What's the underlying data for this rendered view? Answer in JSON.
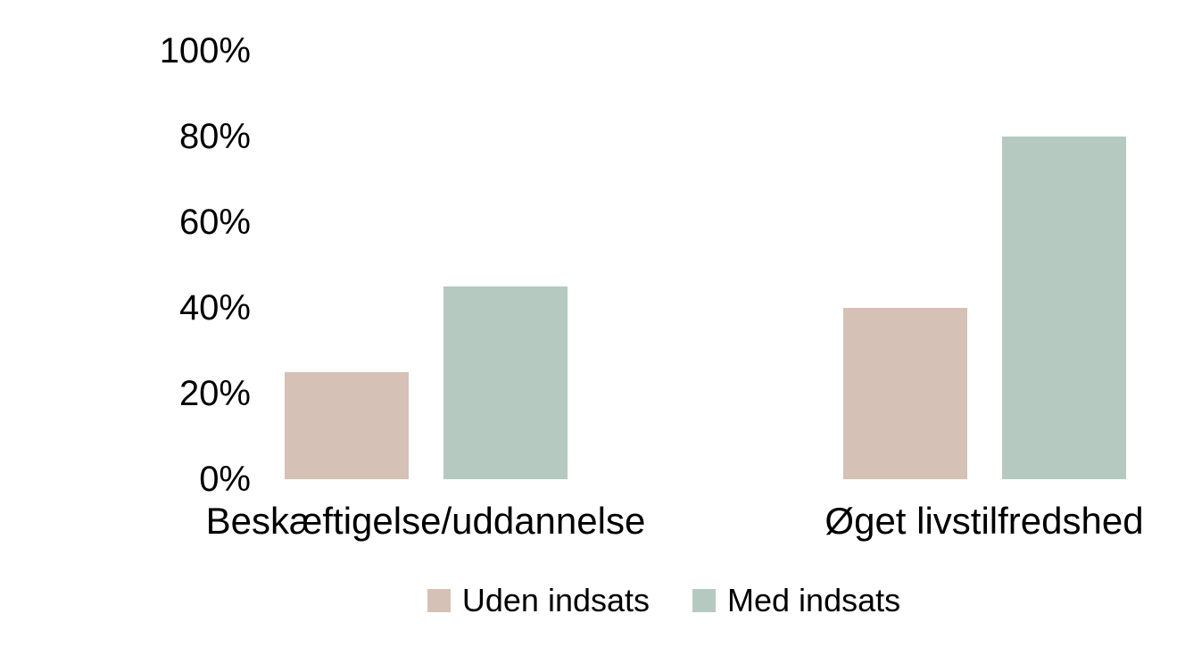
{
  "chart_data": {
    "type": "bar",
    "title": "",
    "categories": [
      "Beskæftigelse/uddannelse",
      "Øget livstilfredshed"
    ],
    "series": [
      {
        "name": "Uden indsats",
        "values": [
          25,
          40
        ],
        "color": "#d5c1b5"
      },
      {
        "name": "Med indsats",
        "values": [
          45,
          80
        ],
        "color": "#b5c9c0"
      }
    ],
    "y_axis": {
      "range": [
        0,
        100
      ],
      "unit": "%",
      "ticks": [
        {
          "value": 0,
          "label": "0%"
        },
        {
          "value": 20,
          "label": "20%"
        },
        {
          "value": 40,
          "label": "40%"
        },
        {
          "value": 60,
          "label": "60%"
        },
        {
          "value": 80,
          "label": "80%"
        },
        {
          "value": 100,
          "label": "100%"
        }
      ]
    },
    "grid": false,
    "axis_lines": false,
    "legend_position": "bottom",
    "background_color": "#ffffff",
    "text_color": "#000000"
  }
}
